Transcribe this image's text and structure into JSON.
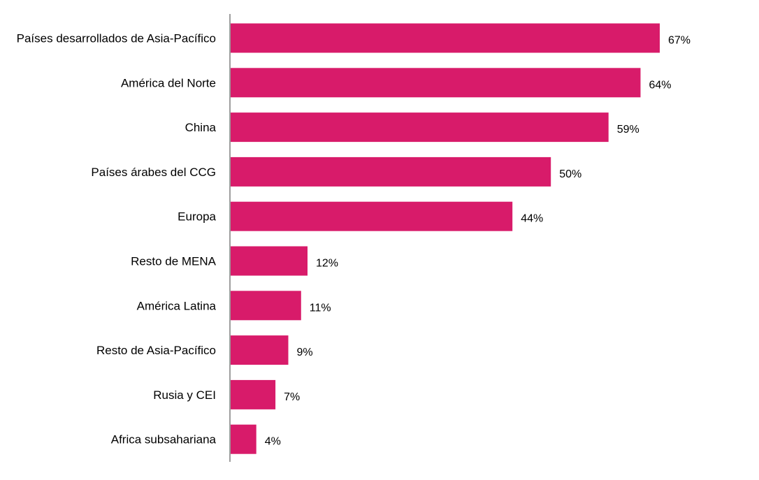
{
  "chart_data": {
    "type": "bar",
    "orientation": "horizontal",
    "categories": [
      "Países desarrollados de Asia-Pacífico",
      "América del Norte",
      "China",
      "Países árabes del CCG",
      "Europa",
      "Resto de MENA",
      "América Latina",
      "Resto de Asia-Pacífico",
      "Rusia y CEI",
      "Africa subsahariana"
    ],
    "values": [
      67,
      64,
      59,
      50,
      44,
      12,
      11,
      9,
      7,
      4
    ],
    "value_labels": [
      "67%",
      "64%",
      "59%",
      "50%",
      "44%",
      "12%",
      "11%",
      "9%",
      "7%",
      "4%"
    ],
    "unit": "%",
    "xlim": [
      0,
      67
    ],
    "grid": false,
    "legend": "none",
    "bar_color": "#D81B6A"
  }
}
